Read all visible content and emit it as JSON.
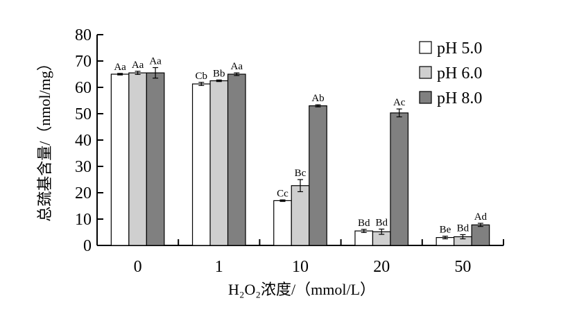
{
  "chart_data": {
    "type": "bar",
    "xlabel": "H₂O₂浓度/（mmol/L）",
    "ylabel": "总巯基含量/（nmol/mg）",
    "categories": [
      "0",
      "1",
      "10",
      "20",
      "50"
    ],
    "ylim": [
      0,
      80
    ],
    "yticks": [
      0,
      10,
      20,
      30,
      40,
      50,
      60,
      70,
      80
    ],
    "series": [
      {
        "name": "pH 5.0",
        "color": "#ffffff",
        "values": [
          65.0,
          61.3,
          17.0,
          5.5,
          3.0
        ],
        "errors": [
          0.3,
          0.6,
          0.3,
          0.6,
          0.5
        ],
        "labels": [
          "Aa",
          "Cb",
          "Cc",
          "Bd",
          "Be"
        ]
      },
      {
        "name": "pH 6.0",
        "color": "#cfcfcf",
        "values": [
          65.5,
          62.5,
          22.7,
          5.2,
          3.3
        ],
        "errors": [
          0.6,
          0.3,
          2.3,
          1.0,
          0.8
        ],
        "labels": [
          "Aa",
          "Bb",
          "Bc",
          "Bd",
          "Bd"
        ]
      },
      {
        "name": "pH 8.0",
        "color": "#808080",
        "values": [
          65.5,
          65.0,
          53.0,
          50.3,
          7.8
        ],
        "errors": [
          2.0,
          0.5,
          0.4,
          1.5,
          0.6
        ],
        "labels": [
          "Aa",
          "Aa",
          "Ab",
          "Ac",
          "Ad"
        ]
      }
    ],
    "legend_position": "top-right",
    "grid": false
  }
}
